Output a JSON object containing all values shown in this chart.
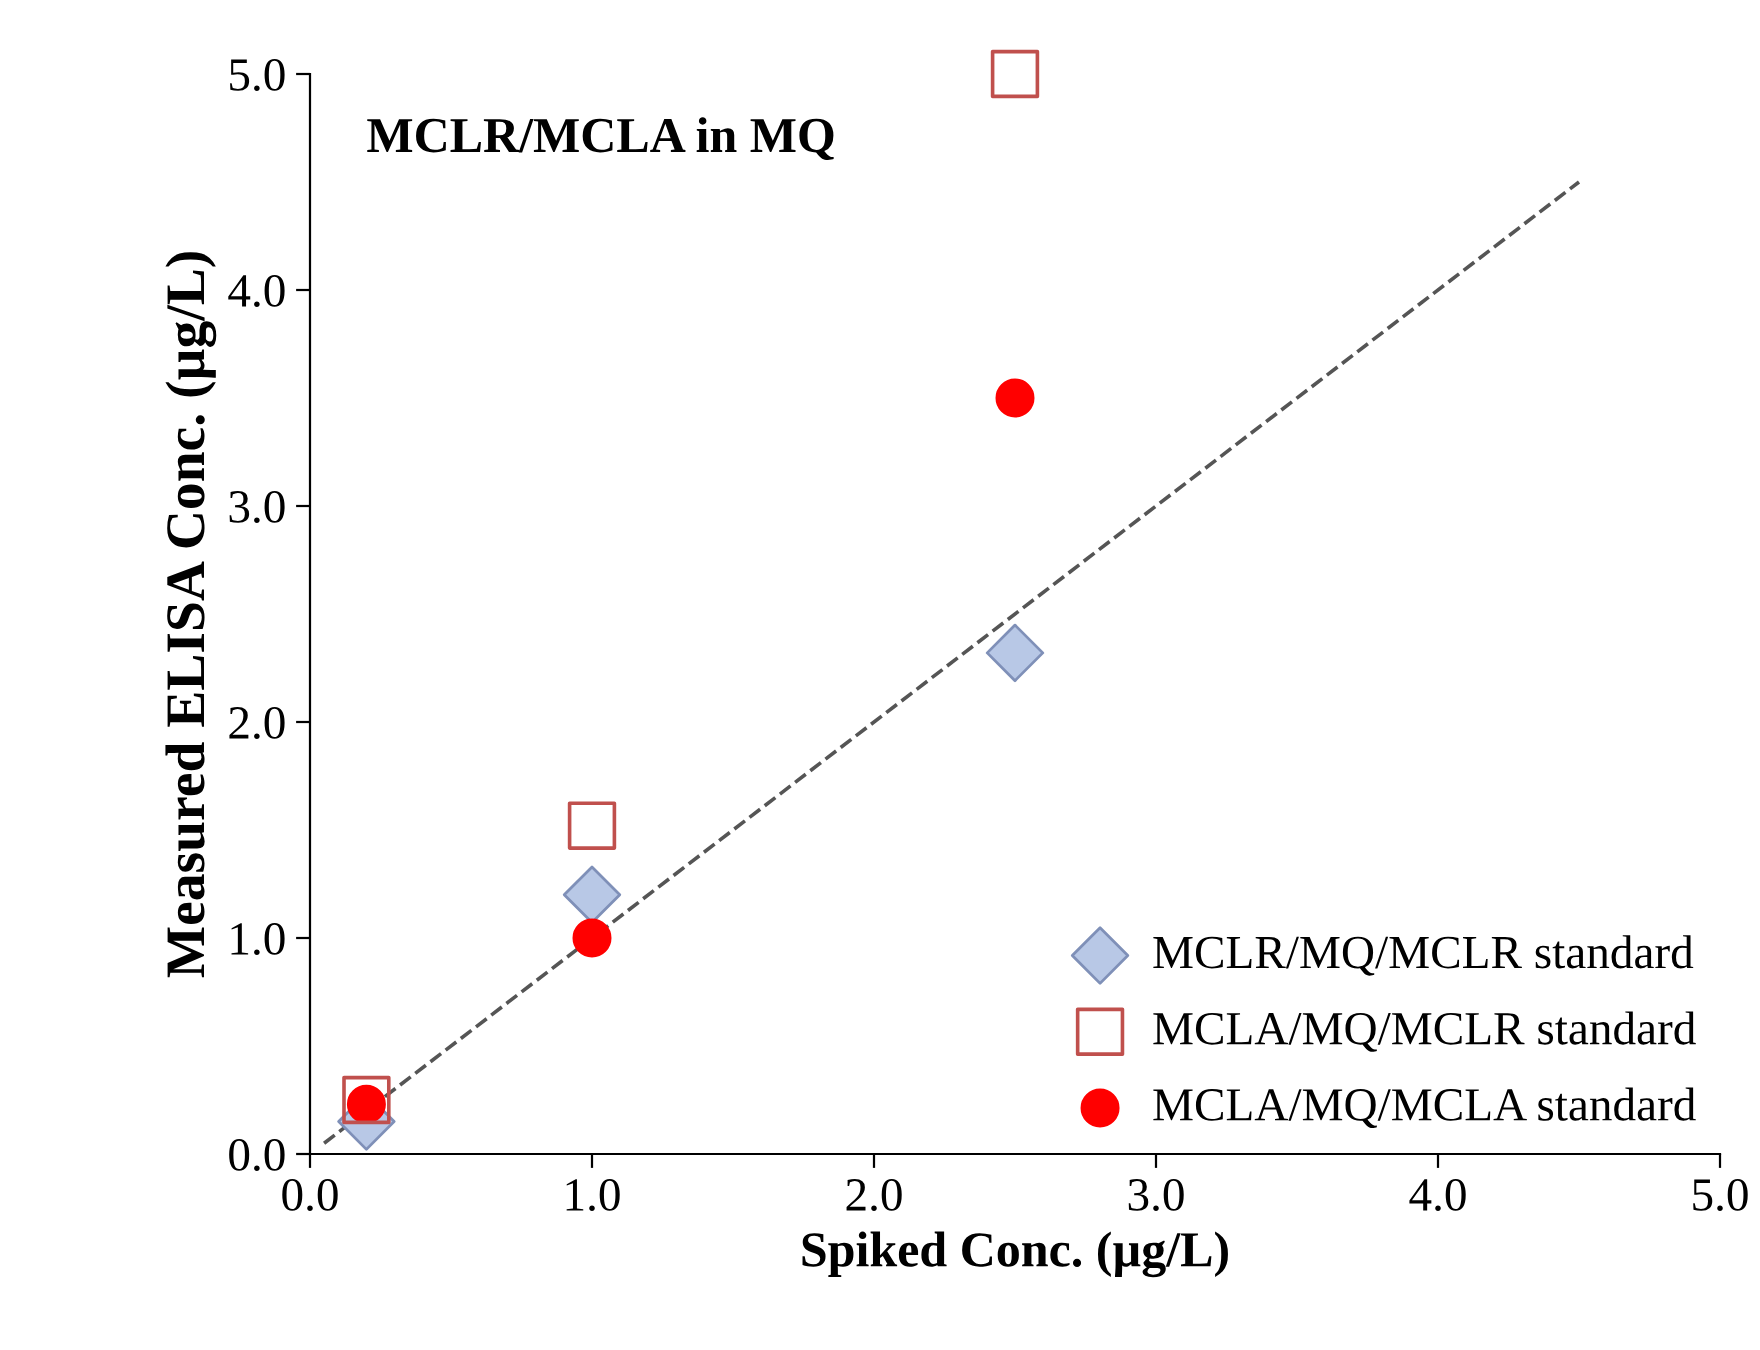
{
  "chart_data": {
    "type": "scatter",
    "title": "MCLR/MCLA in MQ",
    "xlabel": "Spiked Conc. (µg/L)",
    "ylabel": "Measured ELISA Conc. (µg/L)",
    "xlim": [
      0,
      5
    ],
    "ylim": [
      0,
      5
    ],
    "xticks": [
      {
        "value": 0,
        "label": "0.0"
      },
      {
        "value": 1,
        "label": "1.0"
      },
      {
        "value": 2,
        "label": "2.0"
      },
      {
        "value": 3,
        "label": "3.0"
      },
      {
        "value": 4,
        "label": "4.0"
      },
      {
        "value": 5,
        "label": "5.0"
      }
    ],
    "yticks": [
      {
        "value": 0,
        "label": "0.0"
      },
      {
        "value": 1,
        "label": "1.0"
      },
      {
        "value": 2,
        "label": "2.0"
      },
      {
        "value": 3,
        "label": "3.0"
      },
      {
        "value": 4,
        "label": "4.0"
      },
      {
        "value": 5,
        "label": "5.0"
      }
    ],
    "grid": false,
    "legend": "bottom right",
    "series": [
      {
        "name": "MCLR/MQ/MCLR standard",
        "color": "#b8c8e6",
        "marker": "diamond",
        "x": [
          0.2,
          1.0,
          2.5
        ],
        "values": [
          0.15,
          1.2,
          2.32
        ]
      },
      {
        "name": "MCLA/MQ/MCLR standard",
        "color": "#c0504d",
        "marker": "square",
        "x": [
          0.2,
          1.0,
          2.5
        ],
        "values": [
          0.25,
          1.52,
          5.0
        ]
      },
      {
        "name": "MCLA/MQ/MCLA standard",
        "color": "#ff0000",
        "marker": "circle",
        "x": [
          0.2,
          1.0,
          2.5
        ],
        "values": [
          0.23,
          1.0,
          3.5
        ]
      },
      {
        "type": "line",
        "color": "#555555",
        "line_style": "dashed",
        "marker": "none",
        "x": [
          0.05,
          4.5
        ],
        "values": [
          0.05,
          4.5
        ]
      }
    ]
  }
}
